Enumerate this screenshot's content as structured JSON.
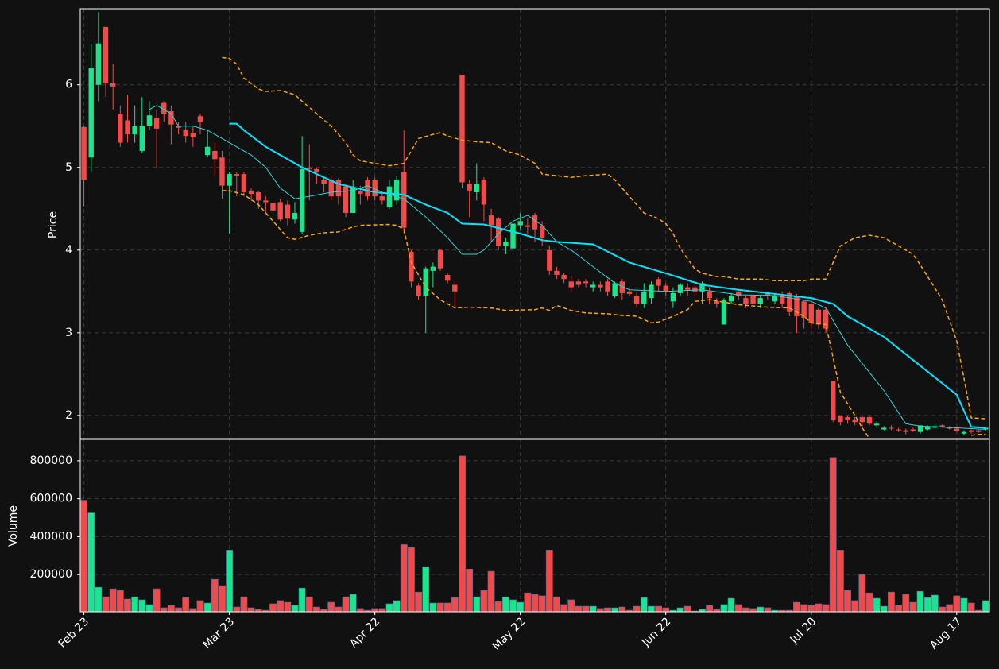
{
  "chart_data": {
    "type": "candlestick",
    "ylabel": "Price",
    "volume_ylabel": "Volume",
    "up_color": "#19e68c",
    "down_color": "#f04a4a",
    "grid": true,
    "xlim": [
      -0.5,
      124.5
    ],
    "ylim": [
      1.72,
      6.92
    ],
    "yticks": [
      2,
      3,
      4,
      5,
      6
    ],
    "volume_ylim": [
      4000,
      912500
    ],
    "volume_yticks": [
      200000,
      400000,
      600000,
      800000
    ],
    "categories": [
      "Feb 23",
      null,
      null,
      null,
      null,
      null,
      null,
      null,
      null,
      null,
      null,
      null,
      null,
      null,
      null,
      null,
      null,
      null,
      null,
      null,
      "Mar 23",
      null,
      null,
      null,
      null,
      null,
      null,
      null,
      null,
      null,
      null,
      null,
      null,
      null,
      null,
      null,
      null,
      null,
      null,
      null,
      "Apr 22",
      null,
      null,
      null,
      null,
      null,
      null,
      null,
      null,
      null,
      null,
      null,
      null,
      null,
      null,
      null,
      null,
      null,
      null,
      null,
      "May 22",
      null,
      null,
      null,
      null,
      null,
      null,
      null,
      null,
      null,
      null,
      null,
      null,
      null,
      null,
      null,
      null,
      null,
      null,
      null,
      "Jun 22",
      null,
      null,
      null,
      null,
      null,
      null,
      null,
      null,
      null,
      null,
      null,
      null,
      null,
      null,
      null,
      null,
      null,
      null,
      null,
      "Jul 20",
      null,
      null,
      null,
      null,
      null,
      null,
      null,
      null,
      null,
      null,
      null,
      null,
      null,
      null,
      null,
      null,
      null,
      null,
      null,
      "Aug 17",
      null,
      null,
      null,
      null
    ],
    "open": [
      5.49,
      5.12,
      6.0,
      6.7,
      6.02,
      5.65,
      5.57,
      5.4,
      5.2,
      5.5,
      5.6,
      5.78,
      5.68,
      5.5,
      5.45,
      5.42,
      5.62,
      5.15,
      5.2,
      5.12,
      4.78,
      4.92,
      4.92,
      4.72,
      4.7,
      4.6,
      4.57,
      4.58,
      4.55,
      4.37,
      4.22,
      5.0,
      4.98,
      4.85,
      4.85,
      4.85,
      4.77,
      4.45,
      4.72,
      4.85,
      4.85,
      4.65,
      4.52,
      4.6,
      4.95,
      3.98,
      3.57,
      3.45,
      3.75,
      4.0,
      3.7,
      3.58,
      6.12,
      4.8,
      4.7,
      4.85,
      4.42,
      4.38,
      4.05,
      4.02,
      4.3,
      4.3,
      4.42,
      4.3,
      4.0,
      3.75,
      3.7,
      3.62,
      3.62,
      3.62,
      3.55,
      3.58,
      3.62,
      3.45,
      3.62,
      3.5,
      3.45,
      3.35,
      3.42,
      3.65,
      3.57,
      3.38,
      3.48,
      3.55,
      3.55,
      3.5,
      3.5,
      3.38,
      3.1,
      3.38,
      3.5,
      3.42,
      3.45,
      3.35,
      3.48,
      3.38,
      3.45,
      3.48,
      3.45,
      3.38,
      3.35,
      3.28,
      3.28,
      2.42,
      2.0,
      1.98,
      1.95,
      1.98,
      1.98,
      1.88,
      1.83,
      1.85,
      1.83,
      1.82,
      1.83,
      1.8,
      1.83,
      1.85,
      1.88,
      1.86,
      1.84,
      1.78,
      1.82,
      1.82,
      1.83
    ],
    "high": [
      5.5,
      6.5,
      6.88,
      6.7,
      6.25,
      5.75,
      5.88,
      5.75,
      5.85,
      5.8,
      5.7,
      5.8,
      5.75,
      5.55,
      5.55,
      5.5,
      5.65,
      5.45,
      5.3,
      5.2,
      4.95,
      4.95,
      4.95,
      4.75,
      4.72,
      4.65,
      4.6,
      4.62,
      4.6,
      4.58,
      5.38,
      5.28,
      5.0,
      4.9,
      4.9,
      4.87,
      4.8,
      4.85,
      4.78,
      4.88,
      4.88,
      4.7,
      4.85,
      4.9,
      5.45,
      4.0,
      3.6,
      3.8,
      3.85,
      4.02,
      3.72,
      3.62,
      6.12,
      4.85,
      5.05,
      4.88,
      4.5,
      4.4,
      4.15,
      4.45,
      4.45,
      4.38,
      4.45,
      4.35,
      4.05,
      3.8,
      3.72,
      3.68,
      3.65,
      3.65,
      3.62,
      3.62,
      3.65,
      3.62,
      3.65,
      3.55,
      3.5,
      3.6,
      3.62,
      3.67,
      3.6,
      3.55,
      3.6,
      3.6,
      3.58,
      3.62,
      3.55,
      3.42,
      3.42,
      3.48,
      3.52,
      3.45,
      3.48,
      3.45,
      3.5,
      3.48,
      3.5,
      3.5,
      3.47,
      3.4,
      3.38,
      3.3,
      3.3,
      2.42,
      2.0,
      2.0,
      1.98,
      2.0,
      2.0,
      1.93,
      1.87,
      1.88,
      1.85,
      1.84,
      1.85,
      1.88,
      1.88,
      1.89,
      1.89,
      1.87,
      1.85,
      1.82,
      1.83,
      1.83,
      1.86
    ],
    "low": [
      4.53,
      4.95,
      5.8,
      5.85,
      5.7,
      5.25,
      5.3,
      5.3,
      5.18,
      5.45,
      5.0,
      5.55,
      5.28,
      5.4,
      5.3,
      5.25,
      5.4,
      5.12,
      4.9,
      4.62,
      4.2,
      4.65,
      4.65,
      4.6,
      4.5,
      4.45,
      4.4,
      4.35,
      4.3,
      4.32,
      4.2,
      4.6,
      4.8,
      4.7,
      4.6,
      4.55,
      4.4,
      4.45,
      4.55,
      4.6,
      4.6,
      4.55,
      4.5,
      4.55,
      4.2,
      3.55,
      3.4,
      3.0,
      3.55,
      3.75,
      3.6,
      3.3,
      4.75,
      4.4,
      4.6,
      4.35,
      4.1,
      4.0,
      3.95,
      4.0,
      4.25,
      4.2,
      4.1,
      4.05,
      3.7,
      3.65,
      3.6,
      3.5,
      3.55,
      3.55,
      3.5,
      3.5,
      3.45,
      3.42,
      3.4,
      3.45,
      3.3,
      3.3,
      3.35,
      3.5,
      3.45,
      3.3,
      3.45,
      3.45,
      3.45,
      3.35,
      3.35,
      3.3,
      3.1,
      3.35,
      3.4,
      3.3,
      3.3,
      3.3,
      3.4,
      3.35,
      3.3,
      3.2,
      3.0,
      3.05,
      3.05,
      3.05,
      3.0,
      1.92,
      1.88,
      1.9,
      1.88,
      1.85,
      1.88,
      1.85,
      1.82,
      1.82,
      1.8,
      1.77,
      1.8,
      1.78,
      1.82,
      1.84,
      1.85,
      1.83,
      1.8,
      1.76,
      1.78,
      1.79,
      1.82
    ],
    "close": [
      4.85,
      6.2,
      6.5,
      6.02,
      5.98,
      5.3,
      5.4,
      5.5,
      5.5,
      5.63,
      5.47,
      5.65,
      5.52,
      5.48,
      5.38,
      5.37,
      5.55,
      5.25,
      5.1,
      4.78,
      4.92,
      4.9,
      4.7,
      4.68,
      4.6,
      4.58,
      4.48,
      4.37,
      4.38,
      4.45,
      4.98,
      4.98,
      4.95,
      4.8,
      4.65,
      4.65,
      4.45,
      4.75,
      4.68,
      4.65,
      4.65,
      4.6,
      4.77,
      4.85,
      4.27,
      3.62,
      3.45,
      3.78,
      3.8,
      3.78,
      3.63,
      3.5,
      4.82,
      4.72,
      4.8,
      4.55,
      4.3,
      4.05,
      4.1,
      4.32,
      4.35,
      4.28,
      4.25,
      4.15,
      3.75,
      3.7,
      3.65,
      3.55,
      3.58,
      3.6,
      3.58,
      3.55,
      3.5,
      3.6,
      3.48,
      3.47,
      3.35,
      3.5,
      3.58,
      3.57,
      3.5,
      3.48,
      3.58,
      3.52,
      3.5,
      3.6,
      3.42,
      3.35,
      3.4,
      3.45,
      3.45,
      3.35,
      3.35,
      3.42,
      3.45,
      3.45,
      3.35,
      3.25,
      3.2,
      3.18,
      3.12,
      3.1,
      3.05,
      1.95,
      1.92,
      1.95,
      1.92,
      1.92,
      1.9,
      1.9,
      1.85,
      1.84,
      1.82,
      1.8,
      1.81,
      1.88,
      1.87,
      1.87,
      1.86,
      1.84,
      1.81,
      1.8,
      1.8,
      1.8,
      1.85
    ],
    "volume": [
      592000,
      525000,
      133000,
      83000,
      125000,
      117000,
      71000,
      83000,
      67000,
      42000,
      125000,
      25000,
      38000,
      25000,
      79000,
      21000,
      63000,
      50000,
      175000,
      142000,
      329000,
      29000,
      83000,
      25000,
      17000,
      12000,
      46000,
      63000,
      54000,
      38000,
      129000,
      83000,
      29000,
      17000,
      54000,
      29000,
      83000,
      96000,
      21000,
      12000,
      21000,
      21000,
      46000,
      63000,
      358000,
      342000,
      108000,
      242000,
      50000,
      50000,
      50000,
      79000,
      825000,
      229000,
      83000,
      117000,
      217000,
      58000,
      83000,
      67000,
      54000,
      104000,
      96000,
      88000,
      329000,
      83000,
      42000,
      67000,
      33000,
      33000,
      33000,
      21000,
      25000,
      25000,
      29000,
      12000,
      33000,
      79000,
      33000,
      33000,
      25000,
      12000,
      25000,
      33000,
      8000,
      17000,
      38000,
      17000,
      42000,
      75000,
      42000,
      25000,
      21000,
      29000,
      25000,
      12000,
      12000,
      12000,
      54000,
      42000,
      38000,
      46000,
      42000,
      817000,
      329000,
      117000,
      63000,
      200000,
      104000,
      75000,
      33000,
      108000,
      38000,
      96000,
      54000,
      112000,
      79000,
      92000,
      29000,
      42000,
      88000,
      75000,
      50000,
      12000,
      63000
    ],
    "lines": [
      {
        "color": "#00e5ff",
        "width": 2,
        "dash": "none",
        "x": [
          20,
          21,
          22,
          25,
          30,
          35,
          40,
          44,
          47,
          50,
          52,
          55,
          60,
          63,
          65,
          70,
          75,
          80,
          85,
          90,
          95,
          100,
          103,
          105,
          110,
          115,
          120,
          122,
          124
        ],
        "values": [
          5.53,
          5.53,
          5.45,
          5.25,
          5.0,
          4.8,
          4.7,
          4.67,
          4.55,
          4.45,
          4.32,
          4.31,
          4.2,
          4.12,
          4.1,
          4.07,
          3.85,
          3.72,
          3.58,
          3.52,
          3.47,
          3.42,
          3.35,
          3.2,
          2.95,
          2.6,
          2.25,
          1.86,
          1.85
        ]
      },
      {
        "color": "#30d5d5",
        "width": 1,
        "dash": "none",
        "x": [
          9,
          10,
          12,
          13,
          15,
          17,
          20,
          23,
          25,
          27,
          29,
          31,
          34,
          37,
          39,
          41,
          44,
          47,
          50,
          52,
          54,
          55,
          57,
          59,
          61,
          63,
          65,
          67,
          70,
          73,
          75,
          80,
          85,
          90,
          95,
          100,
          102,
          105,
          110,
          113,
          115,
          120,
          124
        ],
        "values": [
          5.7,
          5.75,
          5.65,
          5.5,
          5.5,
          5.45,
          5.3,
          5.15,
          5.0,
          4.75,
          4.62,
          4.65,
          4.7,
          4.72,
          4.78,
          4.7,
          4.62,
          4.4,
          4.15,
          3.95,
          3.95,
          4.0,
          4.2,
          4.35,
          4.42,
          4.3,
          4.1,
          4.0,
          3.8,
          3.6,
          3.52,
          3.5,
          3.52,
          3.46,
          3.45,
          3.38,
          3.3,
          2.85,
          2.3,
          1.9,
          1.87,
          1.85,
          1.83
        ]
      },
      {
        "color": "#ffa500",
        "width": 1.5,
        "dash": "5 3",
        "x": [
          19,
          20,
          21,
          22,
          24,
          25,
          27,
          29,
          30,
          32,
          34,
          36,
          37,
          38,
          40,
          42,
          44,
          45,
          46,
          48,
          49,
          50,
          52,
          54,
          56,
          58,
          60,
          61,
          62,
          63,
          65,
          67,
          69,
          72,
          73,
          75,
          77,
          79,
          80,
          81,
          82,
          84,
          85,
          87,
          88,
          90,
          93,
          95,
          99,
          100,
          102,
          103,
          104,
          106,
          108,
          110,
          112,
          114,
          115,
          118,
          120,
          121,
          122,
          124
        ],
        "values": [
          6.33,
          6.32,
          6.25,
          6.08,
          5.95,
          5.92,
          5.93,
          5.88,
          5.8,
          5.65,
          5.5,
          5.3,
          5.15,
          5.08,
          5.05,
          5.02,
          5.05,
          5.2,
          5.35,
          5.4,
          5.42,
          5.38,
          5.33,
          5.31,
          5.3,
          5.2,
          5.15,
          5.1,
          5.05,
          4.92,
          4.9,
          4.88,
          4.9,
          4.92,
          4.85,
          4.65,
          4.45,
          4.38,
          4.32,
          4.2,
          4.02,
          3.77,
          3.72,
          3.68,
          3.68,
          3.65,
          3.65,
          3.63,
          3.63,
          3.65,
          3.65,
          3.85,
          4.05,
          4.15,
          4.18,
          4.15,
          4.05,
          3.95,
          3.82,
          3.4,
          2.9,
          2.45,
          1.97,
          1.96
        ]
      },
      {
        "color": "#ffa500",
        "width": 1.5,
        "dash": "5 3",
        "x": [
          19,
          20,
          22,
          24,
          26,
          28,
          29,
          31,
          33,
          35,
          37,
          38,
          42,
          43,
          44,
          45,
          47,
          49,
          51,
          53,
          56,
          58,
          62,
          63,
          64,
          65,
          67,
          69,
          72,
          74,
          76,
          78,
          79,
          81,
          83,
          84,
          86,
          90,
          94,
          97,
          99,
          100,
          102,
          103,
          104,
          106,
          107,
          108,
          109,
          121,
          122,
          123,
          124
        ],
        "values": [
          4.72,
          4.72,
          4.67,
          4.55,
          4.35,
          4.15,
          4.13,
          4.18,
          4.21,
          4.22,
          4.28,
          4.3,
          4.31,
          4.3,
          4.25,
          3.85,
          3.55,
          3.4,
          3.3,
          3.31,
          3.3,
          3.27,
          3.28,
          3.3,
          3.27,
          3.33,
          3.27,
          3.24,
          3.23,
          3.21,
          3.2,
          3.12,
          3.13,
          3.2,
          3.28,
          3.38,
          3.4,
          3.34,
          3.31,
          3.3,
          3.2,
          3.12,
          3.1,
          2.7,
          2.28,
          2.0,
          1.85,
          1.72,
          null,
          null,
          1.76,
          1.77,
          1.77
        ]
      }
    ]
  }
}
